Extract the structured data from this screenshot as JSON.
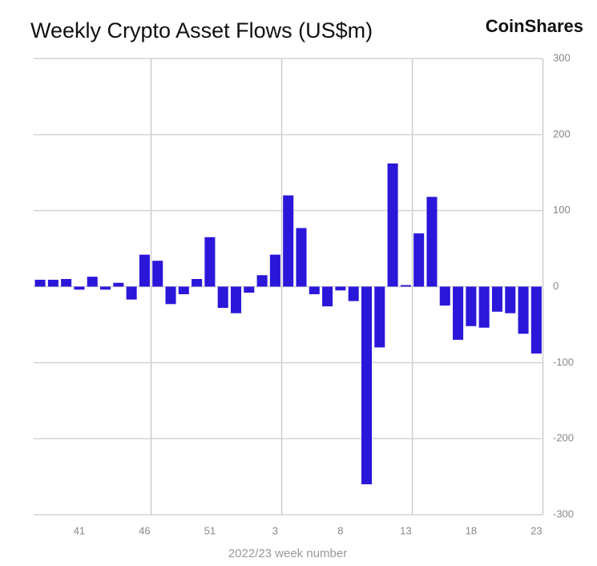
{
  "chart_data": {
    "type": "bar",
    "title": "Weekly Crypto Asset Flows (US$m)",
    "brand": "CoinShares",
    "x_label": "2022/23 week number",
    "categories": [
      null,
      null,
      null,
      "41",
      null,
      null,
      null,
      null,
      "46",
      null,
      null,
      null,
      null,
      "51",
      null,
      null,
      null,
      null,
      "3",
      null,
      null,
      null,
      null,
      "8",
      null,
      null,
      null,
      null,
      "13",
      null,
      null,
      null,
      null,
      "18",
      null,
      null,
      null,
      null,
      "23"
    ],
    "values": [
      9,
      9,
      10,
      -4,
      13,
      -4,
      5,
      -17,
      42,
      34,
      -23,
      -10,
      10,
      65,
      -28,
      -35,
      -8,
      15,
      42,
      120,
      77,
      -10,
      -26,
      -5,
      -19,
      -260,
      -80,
      162,
      2,
      70,
      118,
      -25,
      -70,
      -52,
      -54,
      -33,
      -35,
      -62,
      -88
    ],
    "color": "#2a17d9",
    "ylim": [
      -300,
      300
    ],
    "yticks": [
      -300,
      -200,
      -100,
      0,
      100,
      200,
      300
    ],
    "grid": true
  }
}
